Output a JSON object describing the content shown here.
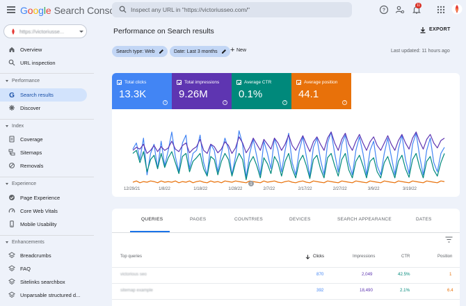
{
  "header": {
    "logo_google": [
      "G",
      "o",
      "o",
      "g",
      "l",
      "e"
    ],
    "logo_rest": "Search Console",
    "search_placeholder": "Inspect any URL in \"https://victoriusseo.com/\"",
    "notifications_count": "11"
  },
  "sidebar": {
    "property": "https://victoriusse...",
    "items_top": [
      {
        "label": "Overview",
        "icon": "home-icon"
      },
      {
        "label": "URL inspection",
        "icon": "search-icon"
      }
    ],
    "sections": [
      {
        "label": "Performance",
        "items": [
          {
            "label": "Search results",
            "icon": "google-g-icon",
            "active": true
          },
          {
            "label": "Discover",
            "icon": "asterisk-icon"
          }
        ]
      },
      {
        "label": "Index",
        "items": [
          {
            "label": "Coverage",
            "icon": "coverage-icon"
          },
          {
            "label": "Sitemaps",
            "icon": "sitemap-icon"
          },
          {
            "label": "Removals",
            "icon": "removals-icon"
          }
        ]
      },
      {
        "label": "Experience",
        "items": [
          {
            "label": "Page Experience",
            "icon": "page-experience-icon"
          },
          {
            "label": "Core Web Vitals",
            "icon": "speedometer-icon"
          },
          {
            "label": "Mobile Usability",
            "icon": "phone-icon"
          }
        ]
      },
      {
        "label": "Enhancements",
        "items": [
          {
            "label": "Breadcrumbs",
            "icon": "layers-icon"
          },
          {
            "label": "FAQ",
            "icon": "layers-icon"
          },
          {
            "label": "Sitelinks searchbox",
            "icon": "layers-icon"
          },
          {
            "label": "Unparsable structured d...",
            "icon": "layers-icon"
          }
        ]
      }
    ]
  },
  "main": {
    "title": "Performance on Search results",
    "export_label": "EXPORT",
    "filters": [
      {
        "label": "Search type: Web"
      },
      {
        "label": "Date: Last 3 months"
      }
    ],
    "new_label": "New",
    "last_updated": "Last updated: 11 hours ago",
    "metrics": [
      {
        "label": "Total clicks",
        "value": "13.3K",
        "color": "#4285f4"
      },
      {
        "label": "Total impressions",
        "value": "9.26M",
        "color": "#5e35b1"
      },
      {
        "label": "Average CTR",
        "value": "0.1%",
        "color": "#00897b"
      },
      {
        "label": "Average position",
        "value": "44.1",
        "color": "#e8710a"
      }
    ],
    "tabs": [
      "QUERIES",
      "PAGES",
      "COUNTRIES",
      "DEVICES",
      "SEARCH APPEARANCE",
      "DATES"
    ],
    "table": {
      "headers": {
        "query": "Top queries",
        "clicks": "Clicks",
        "impressions": "Impressions",
        "ctr": "CTR",
        "position": "Position"
      },
      "rows": [
        {
          "query": "victorious seo",
          "clicks": "870",
          "impressions": "2,049",
          "ctr": "42.5%",
          "position": "1"
        },
        {
          "query": "sitemap example",
          "clicks": "392",
          "impressions": "18,490",
          "ctr": "2.1%",
          "position": "6.4"
        }
      ]
    }
  },
  "chart_data": {
    "type": "line",
    "x_ticks": [
      "12/29/21",
      "1/8/22",
      "1/18/22",
      "1/28/22",
      "2/7/22",
      "2/17/22",
      "2/27/22",
      "3/9/22",
      "3/19/22"
    ],
    "annotation": "1",
    "y_axis": "none shown",
    "series": [
      {
        "metric": "clicks",
        "color": "#4285f4",
        "values": [
          0.62,
          0.72,
          0.45,
          0.8,
          0.2,
          0.55,
          0.7,
          0.3,
          0.75,
          0.35,
          0.6,
          0.9,
          0.5,
          0.25,
          0.72,
          0.85,
          0.3,
          0.55,
          0.6,
          0.85,
          0.4,
          0.2,
          0.7,
          0.6,
          0.25,
          0.55,
          0.8,
          0.62,
          0.2,
          0.5,
          0.92,
          0.7,
          0.15,
          0.55,
          0.78,
          0.5,
          0.2,
          0.75,
          0.55,
          0.3,
          0.8,
          0.6,
          0.25,
          0.6,
          0.88,
          0.4,
          0.2,
          0.6,
          0.82,
          0.5,
          0.18,
          0.65,
          0.8,
          0.45,
          0.2,
          0.72,
          0.9,
          0.55,
          0.25,
          0.7,
          0.85,
          0.4,
          0.2,
          0.6,
          0.82,
          0.55,
          0.2,
          0.6,
          0.75,
          0.35,
          0.2,
          0.55,
          0.8,
          0.5,
          0.2,
          0.62,
          0.85,
          0.45,
          0.22,
          0.7,
          0.88,
          0.5,
          0.2,
          0.6,
          0.8,
          0.4,
          0.25,
          0.55,
          0.65
        ]
      },
      {
        "metric": "impressions",
        "color": "#5e35b1",
        "values": [
          0.6,
          0.65,
          0.62,
          0.7,
          0.55,
          0.6,
          0.68,
          0.58,
          0.66,
          0.6,
          0.64,
          0.75,
          0.62,
          0.58,
          0.68,
          0.72,
          0.56,
          0.62,
          0.66,
          0.78,
          0.6,
          0.55,
          0.7,
          0.66,
          0.56,
          0.62,
          0.74,
          0.68,
          0.55,
          0.64,
          0.82,
          0.72,
          0.56,
          0.65,
          0.8,
          0.7,
          0.6,
          0.78,
          0.7,
          0.62,
          0.8,
          0.72,
          0.6,
          0.7,
          0.85,
          0.68,
          0.6,
          0.72,
          0.84,
          0.7,
          0.58,
          0.74,
          0.82,
          0.7,
          0.6,
          0.8,
          0.9,
          0.72,
          0.6,
          0.78,
          0.88,
          0.7,
          0.6,
          0.75,
          0.86,
          0.72,
          0.6,
          0.74,
          0.82,
          0.68,
          0.6,
          0.72,
          0.84,
          0.7,
          0.6,
          0.76,
          0.86,
          0.72,
          0.62,
          0.8,
          0.9,
          0.74,
          0.62,
          0.78,
          0.86,
          0.72,
          0.64,
          0.76,
          0.8
        ]
      },
      {
        "metric": "ctr",
        "color": "#00897b",
        "values": [
          0.55,
          0.6,
          0.4,
          0.58,
          0.25,
          0.45,
          0.52,
          0.3,
          0.55,
          0.32,
          0.48,
          0.58,
          0.4,
          0.22,
          0.5,
          0.55,
          0.25,
          0.42,
          0.48,
          0.55,
          0.3,
          0.18,
          0.5,
          0.45,
          0.2,
          0.42,
          0.55,
          0.45,
          0.18,
          0.4,
          0.55,
          0.45,
          0.12,
          0.4,
          0.5,
          0.35,
          0.15,
          0.48,
          0.38,
          0.22,
          0.5,
          0.4,
          0.18,
          0.42,
          0.55,
          0.3,
          0.15,
          0.42,
          0.52,
          0.35,
          0.14,
          0.45,
          0.52,
          0.3,
          0.15,
          0.48,
          0.55,
          0.35,
          0.18,
          0.45,
          0.55,
          0.28,
          0.15,
          0.42,
          0.52,
          0.35,
          0.15,
          0.42,
          0.48,
          0.25,
          0.15,
          0.4,
          0.5,
          0.32,
          0.15,
          0.42,
          0.52,
          0.3,
          0.16,
          0.45,
          0.55,
          0.32,
          0.15,
          0.42,
          0.5,
          0.28,
          0.18,
          0.4,
          0.55
        ]
      },
      {
        "metric": "position",
        "color": "#e8710a",
        "values": [
          0.08,
          0.1,
          0.07,
          0.09,
          0.08,
          0.1,
          0.09,
          0.07,
          0.1,
          0.08,
          0.09,
          0.08,
          0.1,
          0.07,
          0.09,
          0.08,
          0.1,
          0.07,
          0.09,
          0.1,
          0.08,
          0.07,
          0.1,
          0.08,
          0.09,
          0.07,
          0.1,
          0.09,
          0.08,
          0.1,
          0.09,
          0.08,
          0.07,
          0.1,
          0.09,
          0.08,
          0.07,
          0.1,
          0.08,
          0.09,
          0.1,
          0.08,
          0.07,
          0.09,
          0.1,
          0.08,
          0.07,
          0.09,
          0.1,
          0.08,
          0.07,
          0.1,
          0.09,
          0.08,
          0.07,
          0.1,
          0.09,
          0.08,
          0.07,
          0.1,
          0.09,
          0.08,
          0.07,
          0.1,
          0.09,
          0.08,
          0.07,
          0.1,
          0.09,
          0.08,
          0.07,
          0.1,
          0.09,
          0.08,
          0.07,
          0.1,
          0.09,
          0.08,
          0.07,
          0.1,
          0.09,
          0.08,
          0.07,
          0.1,
          0.09,
          0.08,
          0.07,
          0.1,
          0.09
        ]
      }
    ]
  }
}
